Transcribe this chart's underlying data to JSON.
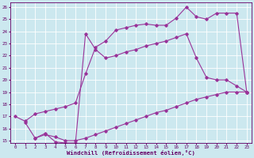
{
  "bg_color": "#cce8ef",
  "grid_color": "#ffffff",
  "line_color": "#993399",
  "xlabel": "Windchill (Refroidissement éolien,°C)",
  "xlabel_color": "#660066",
  "tick_color": "#660066",
  "xlim": [
    -0.5,
    23.5
  ],
  "ylim": [
    14.8,
    26.4
  ],
  "yticks": [
    15,
    16,
    17,
    18,
    19,
    20,
    21,
    22,
    23,
    24,
    25,
    26
  ],
  "xticks": [
    0,
    1,
    2,
    3,
    4,
    5,
    6,
    7,
    8,
    9,
    10,
    11,
    12,
    13,
    14,
    15,
    16,
    17,
    18,
    19,
    20,
    21,
    22,
    23
  ],
  "line1_x": [
    0,
    1,
    2,
    3,
    4,
    5,
    6,
    7,
    8,
    9,
    10,
    11,
    12,
    13,
    14,
    15,
    16,
    17,
    18,
    19,
    20,
    21,
    22,
    23
  ],
  "line1_y": [
    17.0,
    16.6,
    17.2,
    17.4,
    17.6,
    17.8,
    18.1,
    20.5,
    22.7,
    23.2,
    24.1,
    24.3,
    24.5,
    24.6,
    24.5,
    24.5,
    25.1,
    26.0,
    25.2,
    25.0,
    25.5,
    25.5,
    25.5,
    19.0
  ],
  "line2_x": [
    1,
    2,
    3,
    4,
    5,
    6,
    7,
    8,
    9,
    10,
    11,
    12,
    13,
    14,
    15,
    16,
    17,
    18,
    19,
    20,
    21,
    22,
    23
  ],
  "line2_y": [
    16.5,
    15.2,
    15.6,
    14.9,
    14.8,
    14.8,
    23.8,
    22.5,
    21.8,
    22.0,
    22.3,
    22.5,
    22.8,
    23.0,
    23.2,
    23.5,
    23.8,
    21.8,
    20.2,
    20.0,
    20.0,
    19.5,
    19.0
  ],
  "line3_x": [
    2,
    3,
    4,
    5,
    6,
    7,
    8,
    9,
    10,
    11,
    12,
    13,
    14,
    15,
    16,
    17,
    18,
    19,
    20,
    21,
    22,
    23
  ],
  "line3_y": [
    15.2,
    15.5,
    15.3,
    15.0,
    15.0,
    15.2,
    15.5,
    15.8,
    16.1,
    16.4,
    16.7,
    17.0,
    17.3,
    17.5,
    17.8,
    18.1,
    18.4,
    18.6,
    18.8,
    19.0,
    19.0,
    19.0
  ],
  "marker": "D",
  "markersize": 1.8,
  "linewidth": 0.8
}
